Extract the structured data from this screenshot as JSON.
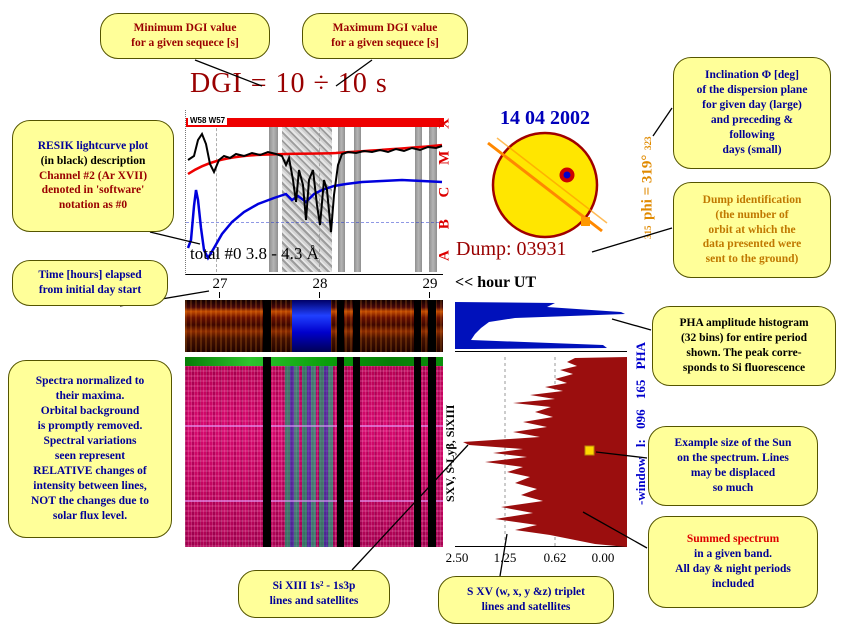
{
  "figure_title": "DGI = 10 ÷ 10 s",
  "lightcurve": {
    "flare_labels": "W58 W57",
    "band_label": "total #0  3.8 - 4.3 Å",
    "goes_classes": "A B C M X"
  },
  "axes": {
    "hour_ticks": [
      "27",
      "28",
      "29"
    ],
    "hour_axis_label": "<< hour UT",
    "spectrum_xticks": [
      "2.50",
      "1.25",
      "0.62",
      "0.00"
    ]
  },
  "sun_panel": {
    "date": "14 04 2002",
    "dump_label": "Dump: 03931",
    "phi_small_bottom": "315",
    "phi_main": "phi = 319°",
    "phi_small_top": "323"
  },
  "spectrum_panel": {
    "pha_window_label": "-window l: 096 165  PHA",
    "line_ids_label": "SXV, S-Lyβ, SiXIII"
  },
  "colors": {
    "bubble_bg": "#FFFF99",
    "dark_red_text": "#990000",
    "navy_text": "#000099",
    "dump_text": "#C07800",
    "title_red": "#990000",
    "goes_red": "#DD0000",
    "phi_orange": "#E08A00",
    "date_blue": "#0000BB",
    "histogram_blue": "#0011BB",
    "spectrum_maroon": "#9B0E0E",
    "sun_yellow": "#FFE600"
  },
  "callouts": {
    "min_dgi": {
      "lines": [
        {
          "t": "Minimum DGI value",
          "c": "#990000"
        },
        {
          "t": "for a given sequece [s]",
          "c": "#990000"
        }
      ]
    },
    "max_dgi": {
      "lines": [
        {
          "t": "Maximum DGI value",
          "c": "#990000"
        },
        {
          "t": "for a given sequece [s]",
          "c": "#990000"
        }
      ]
    },
    "inclination": {
      "lines": [
        {
          "t": "Inclination Φ [deg]",
          "c": "#000099"
        },
        {
          "t": "of the dispersion plane",
          "c": "#000099"
        },
        {
          "t": "for given day (large)",
          "c": "#000099"
        },
        {
          "t": "and preceding &",
          "c": "#000099"
        },
        {
          "t": "following",
          "c": "#000099"
        },
        {
          "t": "days (small)",
          "c": "#000099"
        }
      ]
    },
    "dump_id": {
      "lines": [
        {
          "t": "Dump identification",
          "c": "#C07800"
        },
        {
          "t": "(the number of",
          "c": "#C07800"
        },
        {
          "t": "orbit at which the",
          "c": "#C07800"
        },
        {
          "t": "data presented were",
          "c": "#C07800"
        },
        {
          "t": "sent to the ground)",
          "c": "#C07800"
        }
      ]
    },
    "resik_desc": {
      "lines": [
        {
          "t": "RESIK  lightcurve plot",
          "c": "#000099"
        },
        {
          "t": "(in black) description",
          "c": "#000000"
        },
        {
          "t": "Channel #2 (Ar XVII)",
          "c": "#990000"
        },
        {
          "t": "denoted in 'software'",
          "c": "#990000"
        },
        {
          "t": "notation as #0",
          "c": "#990000"
        }
      ]
    },
    "time_elapsed": {
      "lines": [
        {
          "t": "Time [hours] elapsed",
          "c": "#000099"
        },
        {
          "t": "from initial day start",
          "c": "#000099"
        }
      ]
    },
    "spectra_norm": {
      "lines": [
        {
          "t": "Spectra normalized to",
          "c": "#000099"
        },
        {
          "t": "their maxima.",
          "c": "#000099"
        },
        {
          "t": "Orbital background",
          "c": "#000099"
        },
        {
          "t": "is promptly removed.",
          "c": "#000099"
        },
        {
          "t": "Spectral variations",
          "c": "#000099"
        },
        {
          "t": "seen represent",
          "c": "#000099"
        },
        {
          "t": "RELATIVE changes of",
          "c": "#000099"
        },
        {
          "t": "intensity between lines,",
          "c": "#000099"
        },
        {
          "t": "NOT the changes due to",
          "c": "#000099"
        },
        {
          "t": "solar flux level.",
          "c": "#000099"
        }
      ]
    },
    "pha_hist": {
      "lines": [
        {
          "t": "PHA amplitude histogram",
          "c": "#000000"
        },
        {
          "t": "(32 bins) for entire period",
          "c": "#000000"
        },
        {
          "t": "shown. The peak corre-",
          "c": "#000000"
        },
        {
          "t": "sponds to Si fluorescence",
          "c": "#000000"
        }
      ]
    },
    "sun_size": {
      "lines": [
        {
          "t": "Example size of the Sun",
          "c": "#000099"
        },
        {
          "t": "on the spectrum. Lines",
          "c": "#000099"
        },
        {
          "t": "may be displaced",
          "c": "#000099"
        },
        {
          "t": "so much",
          "c": "#000099"
        }
      ]
    },
    "summed": {
      "lines": [
        {
          "t": "Summed spectrum",
          "c": "#DD0000"
        },
        {
          "t": "in a given band.",
          "c": "#000099"
        },
        {
          "t": "All day & night periods",
          "c": "#000099"
        },
        {
          "t": "included",
          "c": "#000099"
        }
      ]
    },
    "sixiii": {
      "lines": [
        {
          "t": "Si XIII 1s² - 1s3p",
          "c": "#000099"
        },
        {
          "t": "lines  and satellites",
          "c": "#000099"
        }
      ]
    },
    "sxv": {
      "lines": [
        {
          "t": "S XV (w, x, y &z) triplet",
          "c": "#000099"
        },
        {
          "t": "lines  and satellites",
          "c": "#000099"
        }
      ]
    }
  }
}
